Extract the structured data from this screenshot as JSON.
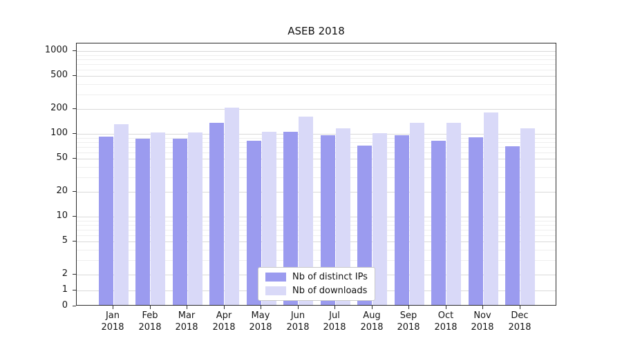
{
  "title": "ASEB 2018",
  "chart_data": {
    "type": "bar",
    "title": "ASEB 2018",
    "categories": [
      "Jan",
      "Feb",
      "Mar",
      "Apr",
      "May",
      "Jun",
      "Jul",
      "Aug",
      "Sep",
      "Oct",
      "Nov",
      "Dec"
    ],
    "category_year": "2018",
    "series": [
      {
        "name": "Nb of distinct IPs",
        "color": "#9b9bef",
        "values": [
          90,
          85,
          85,
          130,
          80,
          103,
          92,
          70,
          93,
          80,
          87,
          68
        ]
      },
      {
        "name": "Nb of downloads",
        "color": "#d9d9f8",
        "values": [
          125,
          100,
          100,
          200,
          103,
          155,
          112,
          98,
          130,
          130,
          175,
          112
        ]
      }
    ],
    "yscale": "symlog",
    "ylim": [
      0,
      1250
    ],
    "yticks": [
      0,
      1,
      2,
      5,
      10,
      20,
      50,
      100,
      200,
      500,
      1000
    ],
    "minor_yticks": [
      3,
      4,
      6,
      7,
      8,
      9,
      30,
      40,
      60,
      70,
      80,
      90,
      300,
      400,
      600,
      700,
      800,
      900
    ],
    "grid": true,
    "legend_position": "lower center",
    "colors": {
      "axis": "#2b2b2b",
      "grid_major": "#d9d9d9",
      "grid_minor": "#eeeeee",
      "text": "#151515",
      "background": "#ffffff"
    }
  }
}
